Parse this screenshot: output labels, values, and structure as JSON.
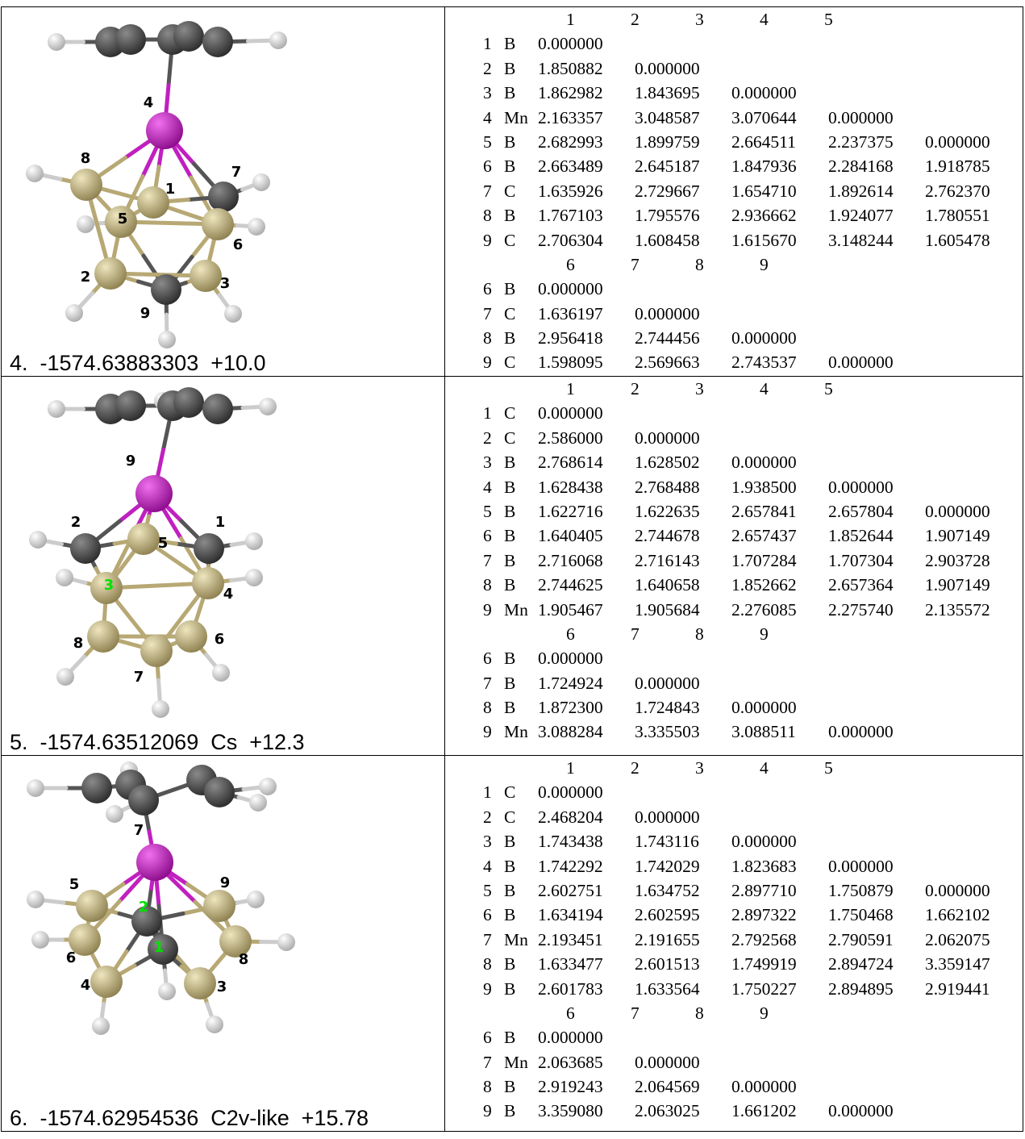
{
  "structures": [
    {
      "caption": "4.  -1574.63883303  +10.0",
      "atom_labels": [
        "4",
        "8",
        "7",
        "1",
        "5",
        "6",
        "2",
        "3",
        "9"
      ],
      "matrix_top": {
        "headers": [
          "1",
          "2",
          "3",
          "4",
          "5"
        ],
        "rows": [
          {
            "n": "1",
            "el": "B",
            "v": [
              "0.000000"
            ]
          },
          {
            "n": "2",
            "el": "B",
            "v": [
              "1.850882",
              "0.000000"
            ]
          },
          {
            "n": "3",
            "el": "B",
            "v": [
              "1.862982",
              "1.843695",
              "0.000000"
            ]
          },
          {
            "n": "4",
            "el": "Mn",
            "v": [
              "2.163357",
              "3.048587",
              "3.070644",
              "0.000000"
            ]
          },
          {
            "n": "5",
            "el": "B",
            "v": [
              "2.682993",
              "1.899759",
              "2.664511",
              "2.237375",
              "0.000000"
            ]
          },
          {
            "n": "6",
            "el": "B",
            "v": [
              "2.663489",
              "2.645187",
              "1.847936",
              "2.284168",
              "1.918785"
            ]
          },
          {
            "n": "7",
            "el": "C",
            "v": [
              "1.635926",
              "2.729667",
              "1.654710",
              "1.892614",
              "2.762370"
            ]
          },
          {
            "n": "8",
            "el": "B",
            "v": [
              "1.767103",
              "1.795576",
              "2.936662",
              "1.924077",
              "1.780551"
            ]
          },
          {
            "n": "9",
            "el": "C",
            "v": [
              "2.706304",
              "1.608458",
              "1.615670",
              "3.148244",
              "1.605478"
            ]
          }
        ]
      },
      "matrix_bottom": {
        "headers": [
          "6",
          "7",
          "8",
          "9"
        ],
        "rows": [
          {
            "n": "6",
            "el": "B",
            "v": [
              "0.000000"
            ]
          },
          {
            "n": "7",
            "el": "C",
            "v": [
              "1.636197",
              "0.000000"
            ]
          },
          {
            "n": "8",
            "el": "B",
            "v": [
              "2.956418",
              "2.744456",
              "0.000000"
            ]
          },
          {
            "n": "9",
            "el": "C",
            "v": [
              "1.598095",
              "2.569663",
              "2.743537",
              "0.000000"
            ]
          }
        ]
      }
    },
    {
      "caption": "5.  -1574.63512069  Cs  +12.3",
      "atom_labels": [
        "9",
        "2",
        "1",
        "5",
        "3",
        "4",
        "6",
        "8",
        "7"
      ],
      "matrix_top": {
        "headers": [
          "1",
          "2",
          "3",
          "4",
          "5"
        ],
        "rows": [
          {
            "n": "1",
            "el": "C",
            "v": [
              "0.000000"
            ]
          },
          {
            "n": "2",
            "el": "C",
            "v": [
              "2.586000",
              "0.000000"
            ]
          },
          {
            "n": "3",
            "el": "B",
            "v": [
              "2.768614",
              "1.628502",
              "0.000000"
            ]
          },
          {
            "n": "4",
            "el": "B",
            "v": [
              "1.628438",
              "2.768488",
              "1.938500",
              "0.000000"
            ]
          },
          {
            "n": "5",
            "el": "B",
            "v": [
              "1.622716",
              "1.622635",
              "2.657841",
              "2.657804",
              "0.000000"
            ]
          },
          {
            "n": "6",
            "el": "B",
            "v": [
              "1.640405",
              "2.744678",
              "2.657437",
              "1.852644",
              "1.907149"
            ]
          },
          {
            "n": "7",
            "el": "B",
            "v": [
              "2.716068",
              "2.716143",
              "1.707284",
              "1.707304",
              "2.903728"
            ]
          },
          {
            "n": "8",
            "el": "B",
            "v": [
              "2.744625",
              "1.640658",
              "1.852662",
              "2.657364",
              "1.907149"
            ]
          },
          {
            "n": "9",
            "el": "Mn",
            "v": [
              "1.905467",
              "1.905684",
              "2.276085",
              "2.275740",
              "2.135572"
            ]
          }
        ]
      },
      "matrix_bottom": {
        "headers": [
          "6",
          "7",
          "8",
          "9"
        ],
        "rows": [
          {
            "n": "6",
            "el": "B",
            "v": [
              "0.000000"
            ]
          },
          {
            "n": "7",
            "el": "B",
            "v": [
              "1.724924",
              "0.000000"
            ]
          },
          {
            "n": "8",
            "el": "B",
            "v": [
              "1.872300",
              "1.724843",
              "0.000000"
            ]
          },
          {
            "n": "9",
            "el": "Mn",
            "v": [
              "3.088284",
              "3.335503",
              "3.088511",
              "0.000000"
            ]
          }
        ]
      }
    },
    {
      "caption": "6.  -1574.62954536  C2v-like  +15.78",
      "atom_labels": [
        "7",
        "5",
        "9",
        "2",
        "6",
        "8",
        "1",
        "4",
        "3"
      ],
      "matrix_top": {
        "headers": [
          "1",
          "2",
          "3",
          "4",
          "5"
        ],
        "rows": [
          {
            "n": "1",
            "el": "C",
            "v": [
              "0.000000"
            ]
          },
          {
            "n": "2",
            "el": "C",
            "v": [
              "2.468204",
              "0.000000"
            ]
          },
          {
            "n": "3",
            "el": "B",
            "v": [
              "1.743438",
              "1.743116",
              "0.000000"
            ]
          },
          {
            "n": "4",
            "el": "B",
            "v": [
              "1.742292",
              "1.742029",
              "1.823683",
              "0.000000"
            ]
          },
          {
            "n": "5",
            "el": "B",
            "v": [
              "2.602751",
              "1.634752",
              "2.897710",
              "1.750879",
              "0.000000"
            ]
          },
          {
            "n": "6",
            "el": "B",
            "v": [
              "1.634194",
              "2.602595",
              "2.897322",
              "1.750468",
              "1.662102"
            ]
          },
          {
            "n": "7",
            "el": "Mn",
            "v": [
              "2.193451",
              "2.191655",
              "2.792568",
              "2.790591",
              "2.062075"
            ]
          },
          {
            "n": "8",
            "el": "B",
            "v": [
              "1.633477",
              "2.601513",
              "1.749919",
              "2.894724",
              "3.359147"
            ]
          },
          {
            "n": "9",
            "el": "B",
            "v": [
              "2.601783",
              "1.633564",
              "1.750227",
              "2.894895",
              "2.919441"
            ]
          }
        ]
      },
      "matrix_bottom": {
        "headers": [
          "6",
          "7",
          "8",
          "9"
        ],
        "rows": [
          {
            "n": "6",
            "el": "B",
            "v": [
              "0.000000"
            ]
          },
          {
            "n": "7",
            "el": "Mn",
            "v": [
              "2.063685",
              "0.000000"
            ]
          },
          {
            "n": "8",
            "el": "B",
            "v": [
              "2.919243",
              "2.064569",
              "0.000000"
            ]
          },
          {
            "n": "9",
            "el": "B",
            "v": [
              "3.359080",
              "2.063025",
              "1.661202",
              "0.000000"
            ]
          }
        ]
      }
    }
  ],
  "colors": {
    "boron": "#c9bb8c",
    "carbon": "#4a4a4a",
    "manganese": "#c020c0",
    "hydrogen": "#e6e6e6",
    "label_black": "#000000",
    "label_green": "#00e000"
  }
}
